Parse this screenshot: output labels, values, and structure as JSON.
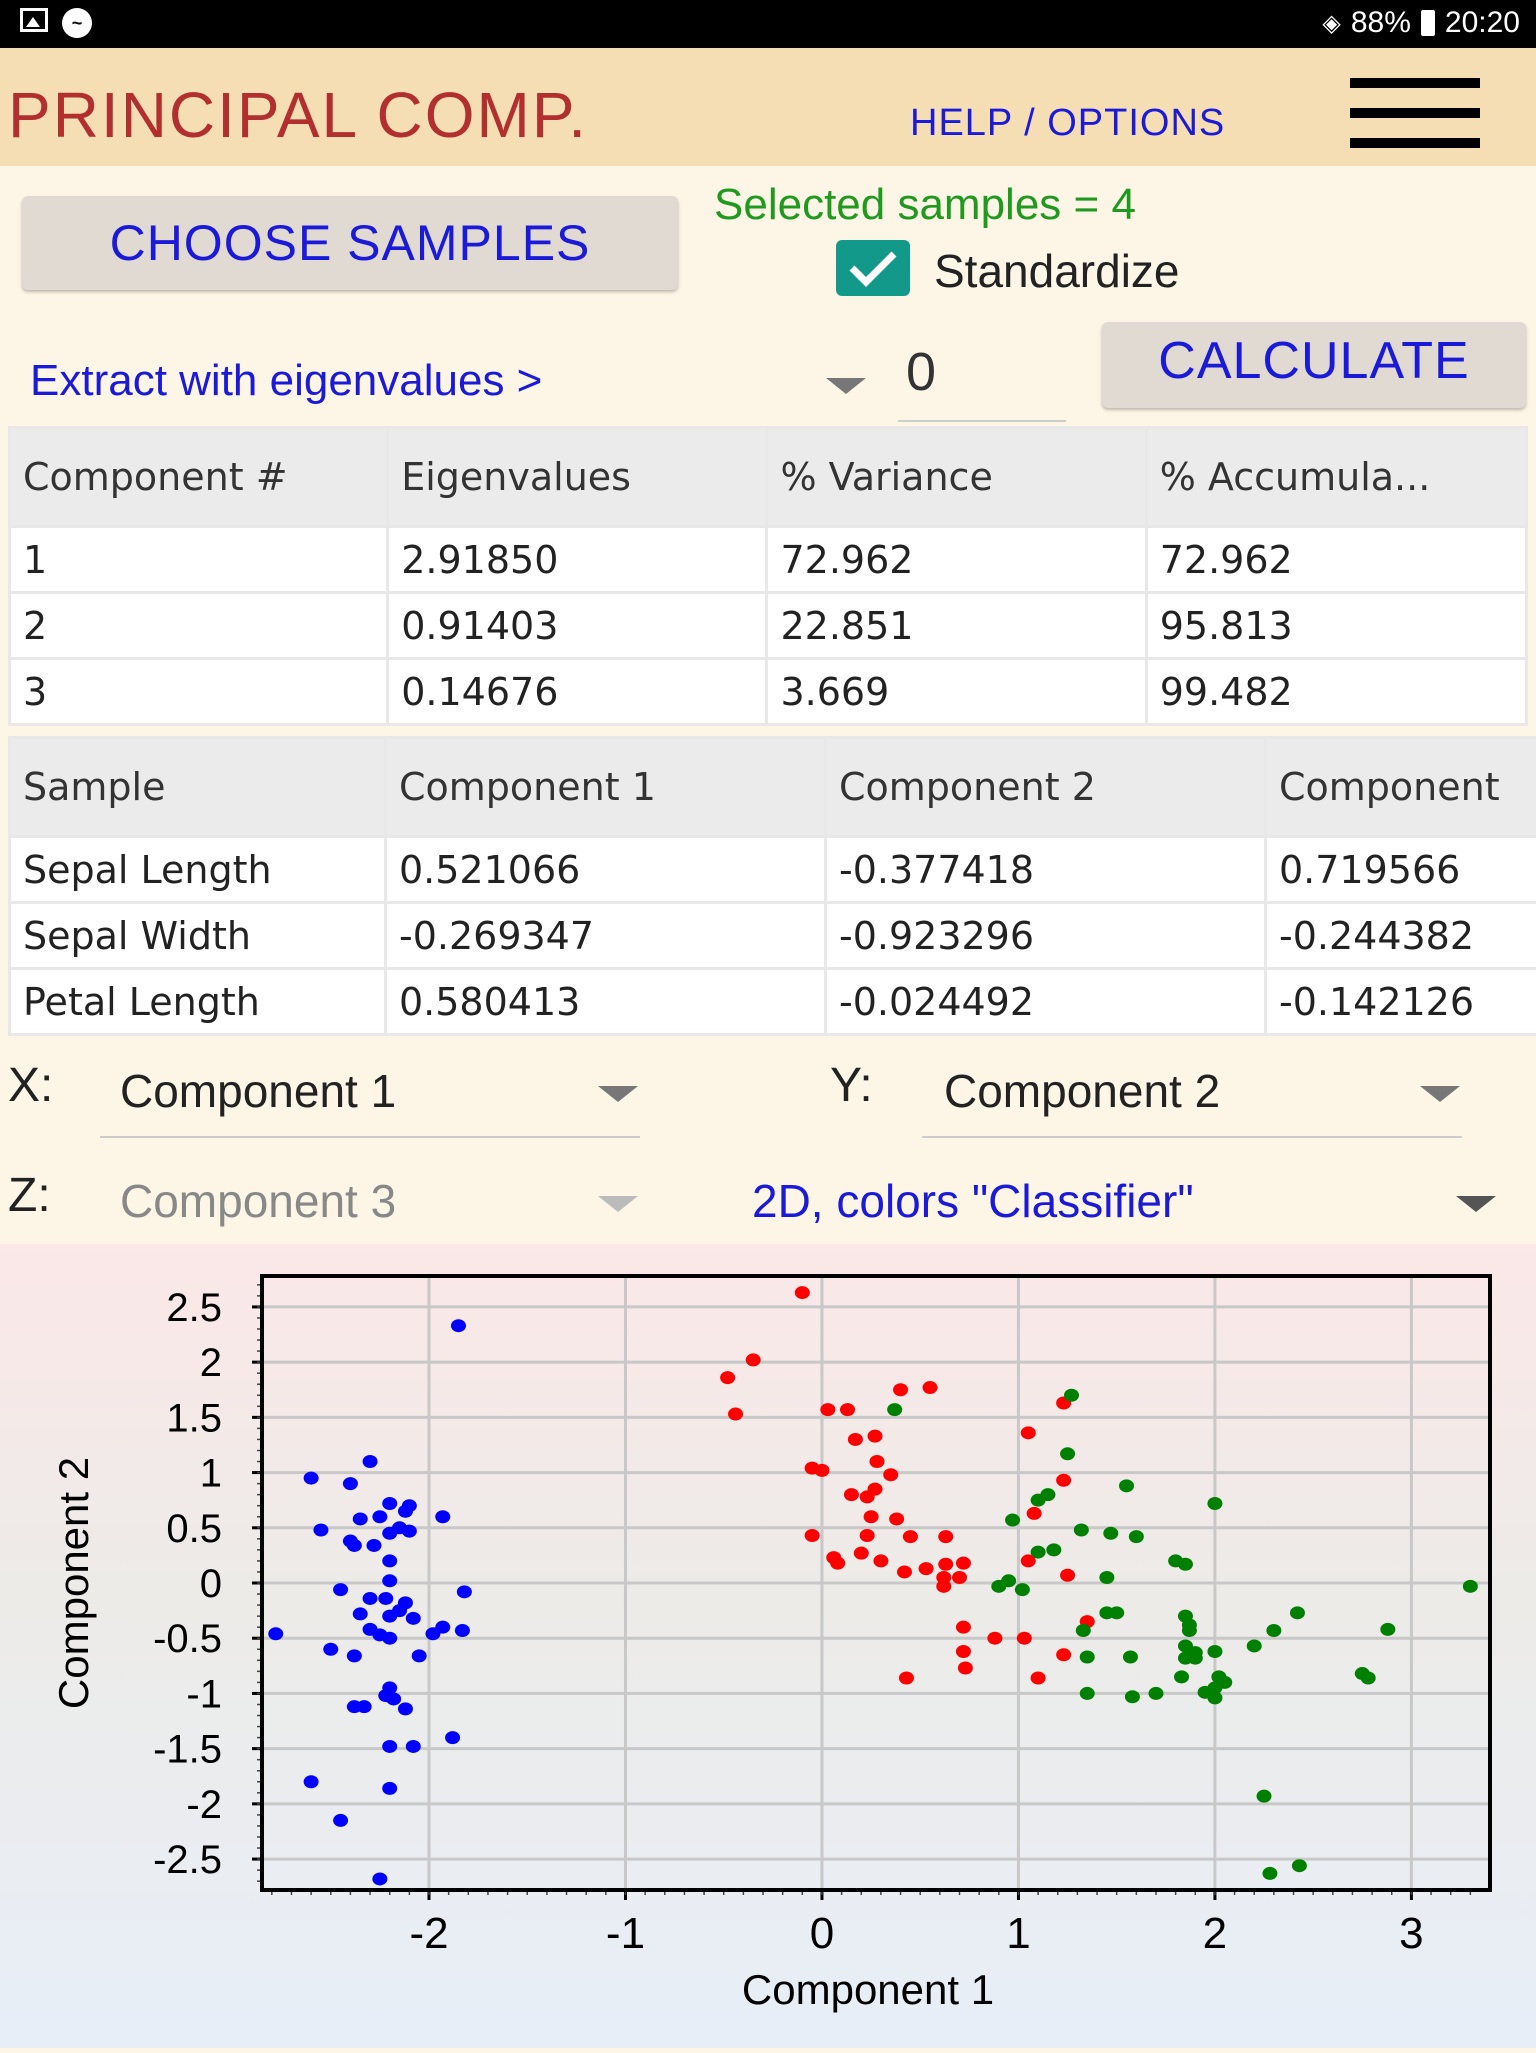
{
  "status_bar": {
    "battery": "88%",
    "time": "20:20"
  },
  "app": {
    "title": "PRINCIPAL COMP.",
    "help": "HELP / OPTIONS"
  },
  "controls": {
    "choose_samples": "CHOOSE SAMPLES",
    "selected_samples": "Selected samples = 4",
    "standardize_label": "Standardize",
    "standardize_checked": true,
    "extract_label": "Extract with eigenvalues >",
    "eigen_threshold": "0",
    "calculate": "CALCULATE"
  },
  "eigen_table": {
    "headers": [
      "Component #",
      "Eigenvalues",
      "% Variance",
      "% Accumula..."
    ],
    "rows": [
      [
        "1",
        "2.91850",
        "72.962",
        "72.962"
      ],
      [
        "2",
        "0.91403",
        "22.851",
        "95.813"
      ],
      [
        "3",
        "0.14676",
        "3.669",
        "99.482"
      ]
    ]
  },
  "loadings_table": {
    "headers": [
      "Sample",
      "Component 1",
      "Component 2",
      "Component"
    ],
    "rows": [
      [
        "Sepal Length",
        "0.521066",
        "-0.377418",
        "0.719566"
      ],
      [
        "Sepal Width",
        "-0.269347",
        "-0.923296",
        "-0.244382"
      ],
      [
        "Petal Length",
        "0.580413",
        "-0.024492",
        "-0.142126"
      ]
    ]
  },
  "axis_selectors": {
    "x_label": "X:",
    "x_value": "Component 1",
    "y_label": "Y:",
    "y_value": "Component 2",
    "z_label": "Z:",
    "z_value": "Component 3",
    "mode_value": "2D, colors \"Classifier\""
  },
  "chart_data": {
    "type": "scatter",
    "xlabel": "Component 1",
    "ylabel": "Component 2",
    "xlim": [
      -2.85,
      3.4
    ],
    "ylim": [
      -2.78,
      2.78
    ],
    "x_ticks": [
      -2,
      -1,
      0,
      1,
      2,
      3
    ],
    "y_ticks": [
      2.5,
      2,
      1.5,
      1,
      0.5,
      0,
      -0.5,
      -1,
      -1.5,
      -2,
      -2.5
    ],
    "grid": true,
    "series": [
      {
        "color": "#0000ff",
        "points": [
          [
            -1.85,
            2.33
          ],
          [
            -2.3,
            1.1
          ],
          [
            -2.6,
            0.95
          ],
          [
            -2.4,
            0.9
          ],
          [
            -2.2,
            0.72
          ],
          [
            -2.1,
            0.7
          ],
          [
            -2.12,
            0.65
          ],
          [
            -2.35,
            0.58
          ],
          [
            -2.25,
            0.6
          ],
          [
            -1.93,
            0.6
          ],
          [
            -2.55,
            0.48
          ],
          [
            -2.15,
            0.5
          ],
          [
            -2.1,
            0.47
          ],
          [
            -2.2,
            0.45
          ],
          [
            -2.4,
            0.38
          ],
          [
            -2.38,
            0.34
          ],
          [
            -2.28,
            0.34
          ],
          [
            -2.2,
            0.2
          ],
          [
            -2.2,
            0.02
          ],
          [
            -2.45,
            -0.06
          ],
          [
            -1.82,
            -0.08
          ],
          [
            -2.3,
            -0.14
          ],
          [
            -2.22,
            -0.14
          ],
          [
            -2.12,
            -0.18
          ],
          [
            -2.15,
            -0.25
          ],
          [
            -2.2,
            -0.3
          ],
          [
            -2.35,
            -0.28
          ],
          [
            -2.08,
            -0.32
          ],
          [
            -1.93,
            -0.4
          ],
          [
            -1.98,
            -0.46
          ],
          [
            -1.83,
            -0.43
          ],
          [
            -2.3,
            -0.42
          ],
          [
            -2.25,
            -0.47
          ],
          [
            -2.2,
            -0.5
          ],
          [
            -2.78,
            -0.46
          ],
          [
            -2.5,
            -0.6
          ],
          [
            -2.38,
            -0.66
          ],
          [
            -2.05,
            -0.66
          ],
          [
            -2.2,
            -0.95
          ],
          [
            -2.22,
            -1.02
          ],
          [
            -2.18,
            -1.05
          ],
          [
            -2.38,
            -1.12
          ],
          [
            -2.33,
            -1.12
          ],
          [
            -2.12,
            -1.14
          ],
          [
            -1.88,
            -1.4
          ],
          [
            -2.08,
            -1.48
          ],
          [
            -2.2,
            -1.48
          ],
          [
            -2.6,
            -1.8
          ],
          [
            -2.2,
            -1.86
          ],
          [
            -2.45,
            -2.15
          ],
          [
            -2.25,
            -2.68
          ]
        ]
      },
      {
        "color": "#ff0000",
        "points": [
          [
            -0.1,
            2.63
          ],
          [
            -0.35,
            2.02
          ],
          [
            -0.48,
            1.86
          ],
          [
            -0.44,
            1.53
          ],
          [
            0.4,
            1.75
          ],
          [
            0.55,
            1.77
          ],
          [
            0.03,
            1.57
          ],
          [
            0.13,
            1.57
          ],
          [
            0.27,
            1.33
          ],
          [
            0.17,
            1.3
          ],
          [
            1.23,
            1.63
          ],
          [
            1.05,
            1.36
          ],
          [
            0.28,
            1.1
          ],
          [
            0.35,
            0.98
          ],
          [
            -0.05,
            1.04
          ],
          [
            0.0,
            1.02
          ],
          [
            0.15,
            0.8
          ],
          [
            0.27,
            0.85
          ],
          [
            0.23,
            0.78
          ],
          [
            0.25,
            0.6
          ],
          [
            0.38,
            0.58
          ],
          [
            1.08,
            0.63
          ],
          [
            1.23,
            0.93
          ],
          [
            -0.05,
            0.43
          ],
          [
            0.23,
            0.43
          ],
          [
            0.45,
            0.42
          ],
          [
            0.63,
            0.42
          ],
          [
            0.06,
            0.23
          ],
          [
            0.08,
            0.18
          ],
          [
            0.2,
            0.27
          ],
          [
            0.3,
            0.2
          ],
          [
            0.53,
            0.13
          ],
          [
            0.63,
            0.17
          ],
          [
            0.72,
            0.18
          ],
          [
            0.42,
            0.1
          ],
          [
            0.62,
            0.05
          ],
          [
            0.7,
            0.05
          ],
          [
            0.62,
            -0.03
          ],
          [
            1.05,
            0.2
          ],
          [
            1.25,
            0.07
          ],
          [
            0.72,
            -0.4
          ],
          [
            0.88,
            -0.5
          ],
          [
            1.35,
            -0.35
          ],
          [
            1.03,
            -0.5
          ],
          [
            0.72,
            -0.62
          ],
          [
            0.73,
            -0.77
          ],
          [
            1.23,
            -0.65
          ],
          [
            0.43,
            -0.86
          ],
          [
            1.1,
            -0.86
          ]
        ]
      },
      {
        "color": "#008000",
        "points": [
          [
            1.27,
            1.7
          ],
          [
            0.37,
            1.57
          ],
          [
            1.25,
            1.17
          ],
          [
            1.55,
            0.88
          ],
          [
            1.15,
            0.8
          ],
          [
            1.1,
            0.75
          ],
          [
            2.0,
            0.72
          ],
          [
            0.97,
            0.57
          ],
          [
            1.32,
            0.48
          ],
          [
            1.47,
            0.45
          ],
          [
            1.6,
            0.42
          ],
          [
            1.18,
            0.3
          ],
          [
            1.1,
            0.28
          ],
          [
            1.8,
            0.2
          ],
          [
            1.85,
            0.17
          ],
          [
            1.45,
            0.05
          ],
          [
            0.95,
            0.02
          ],
          [
            0.9,
            -0.03
          ],
          [
            1.02,
            -0.06
          ],
          [
            3.3,
            -0.03
          ],
          [
            1.45,
            -0.27
          ],
          [
            1.5,
            -0.27
          ],
          [
            1.85,
            -0.3
          ],
          [
            2.42,
            -0.27
          ],
          [
            1.87,
            -0.38
          ],
          [
            1.87,
            -0.43
          ],
          [
            1.33,
            -0.43
          ],
          [
            2.3,
            -0.43
          ],
          [
            2.88,
            -0.42
          ],
          [
            1.85,
            -0.57
          ],
          [
            1.9,
            -0.63
          ],
          [
            2.2,
            -0.57
          ],
          [
            2.0,
            -0.62
          ],
          [
            1.35,
            -0.67
          ],
          [
            1.57,
            -0.67
          ],
          [
            1.85,
            -0.68
          ],
          [
            1.9,
            -0.68
          ],
          [
            2.75,
            -0.82
          ],
          [
            2.78,
            -0.86
          ],
          [
            1.83,
            -0.85
          ],
          [
            2.02,
            -0.85
          ],
          [
            2.05,
            -0.9
          ],
          [
            2.0,
            -0.95
          ],
          [
            1.95,
            -0.99
          ],
          [
            1.35,
            -1.0
          ],
          [
            1.7,
            -1.0
          ],
          [
            1.58,
            -1.03
          ],
          [
            2.0,
            -1.04
          ],
          [
            2.25,
            -1.93
          ],
          [
            2.43,
            -2.56
          ],
          [
            2.28,
            -2.63
          ]
        ]
      }
    ]
  }
}
